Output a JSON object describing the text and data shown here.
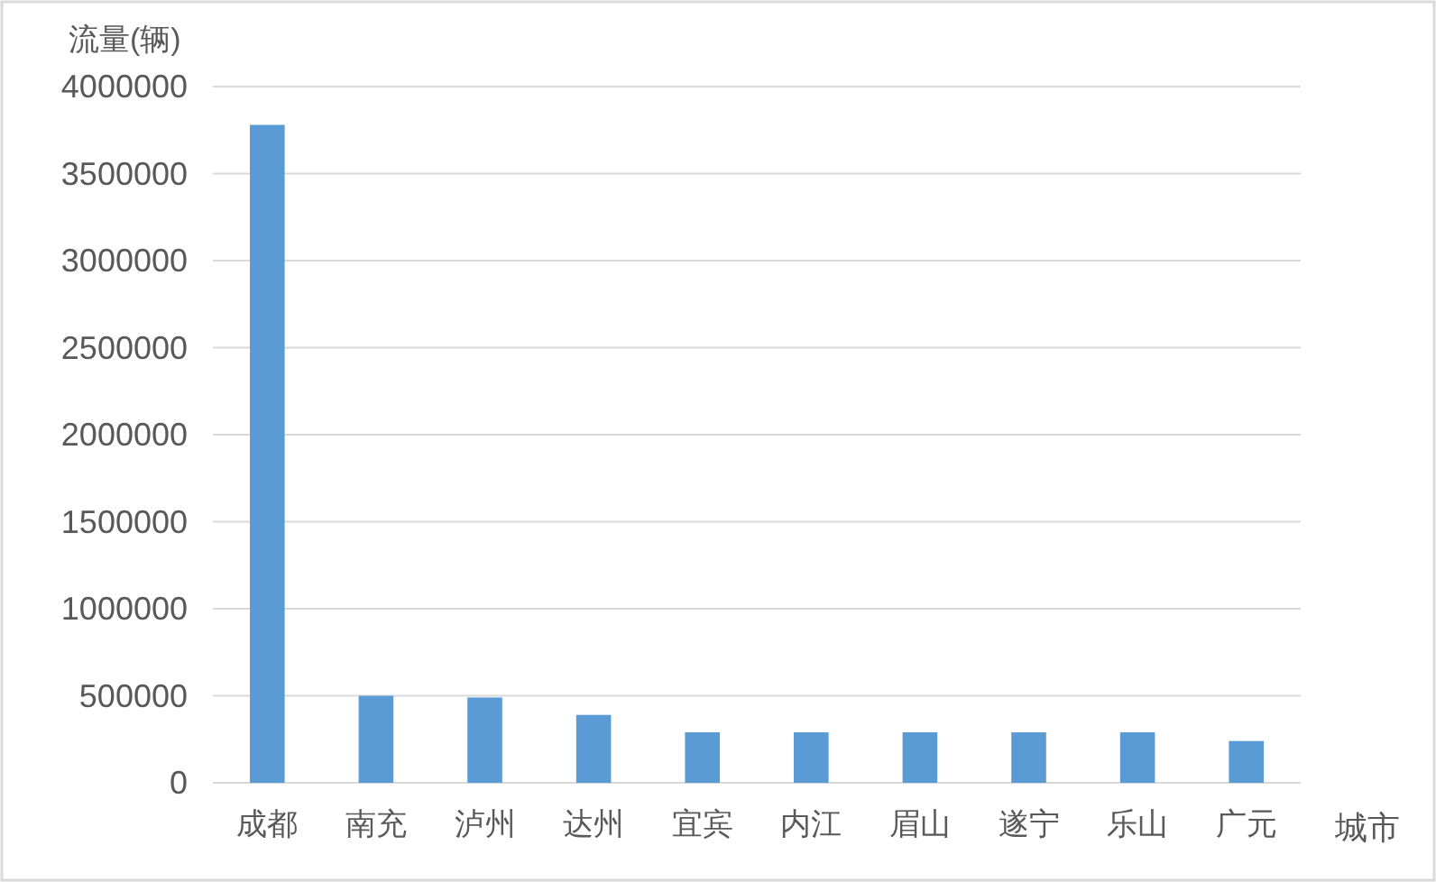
{
  "chart_data": {
    "type": "bar",
    "xlabel": "城市",
    "ylabel": "流量(辆)",
    "categories": [
      "成都",
      "南充",
      "泸州",
      "达州",
      "宜宾",
      "内江",
      "眉山",
      "遂宁",
      "乐山",
      "广元"
    ],
    "values": [
      3780000,
      500000,
      490000,
      390000,
      290000,
      290000,
      290000,
      290000,
      290000,
      240000
    ],
    "color": "#5b9bd5",
    "ylim": [
      0,
      4000000
    ],
    "yticks": [
      0,
      500000,
      1000000,
      1500000,
      2000000,
      2500000,
      3000000,
      3500000,
      4000000
    ],
    "grid": "y"
  }
}
